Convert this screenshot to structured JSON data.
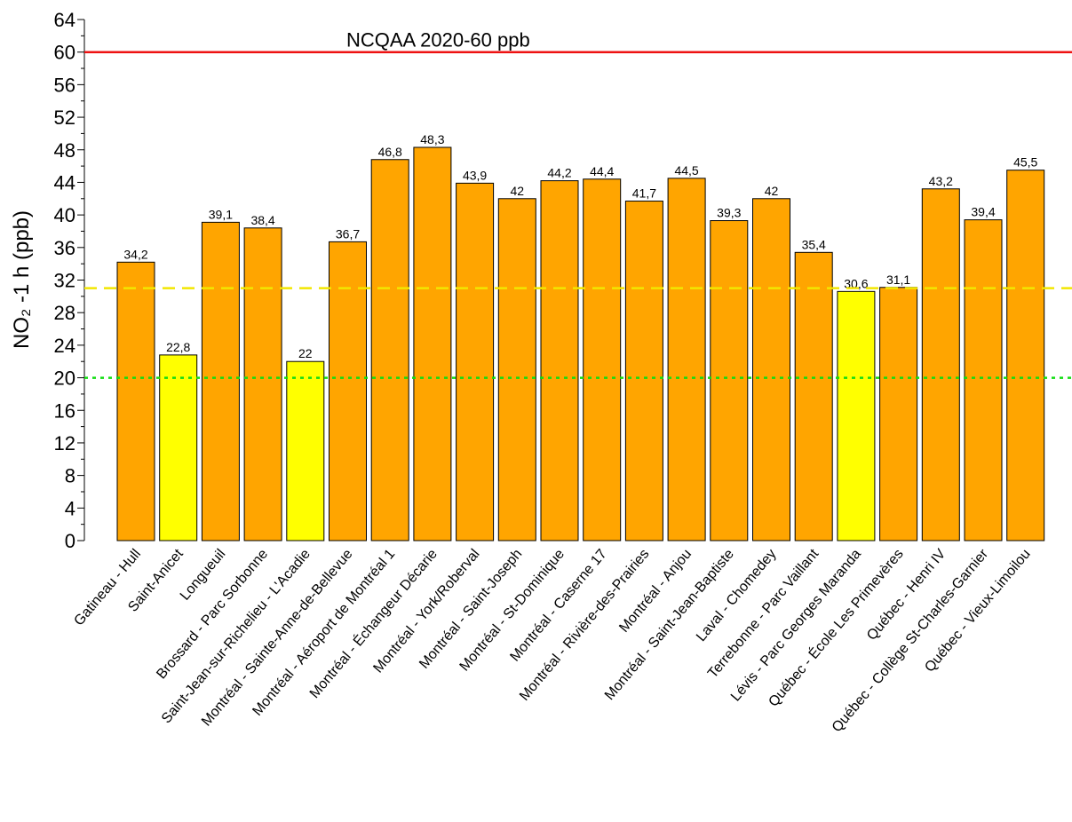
{
  "chart_data": {
    "type": "bar",
    "ylabel": "NO₂ -1 h (ppb)",
    "categories": [
      "Gatineau - Hull",
      "Saint-Anicet",
      "Longueuil",
      "Brossard - Parc Sorbonne",
      "Saint-Jean-sur-Richelieu - L'Acadie",
      "Montréal - Sainte-Anne-de-Bellevue",
      "Montréal - Aéroport de Montréal 1",
      "Montréal - Échangeur Décarie",
      "Montréal - York/Roberval",
      "Montréal - Saint-Joseph",
      "Montréal - St-Dominique",
      "Montréal - Caserne 17",
      "Montréal - Rivière-des-Prairies",
      "Montréal - Anjou",
      "Montréal - Saint-Jean-Baptiste",
      "Laval - Chomedey",
      "Terrebonne - Parc Vaillant",
      "Lévis - Parc Georges Maranda",
      "Québec - École Les Primevères",
      "Québec - Henri IV",
      "Québec - Collège St-Charles-Garnier",
      "Québec - Vieux-Limoilou"
    ],
    "values": [
      34.2,
      22.8,
      39.1,
      38.4,
      22,
      36.7,
      46.8,
      48.3,
      43.9,
      42,
      44.2,
      44.4,
      41.7,
      44.5,
      39.3,
      42,
      35.4,
      30.6,
      31.1,
      43.2,
      39.4,
      45.5
    ],
    "value_labels": [
      "34,2",
      "22,8",
      "39,1",
      "38,4",
      "22",
      "36,7",
      "46,8",
      "48,3",
      "43,9",
      "42",
      "44,2",
      "44,4",
      "41,7",
      "44,5",
      "39,3",
      "42",
      "35,4",
      "30,6",
      "31,1",
      "43,2",
      "39,4",
      "45,5"
    ],
    "colors": [
      "#ffa500",
      "#ffff00",
      "#ffa500",
      "#ffa500",
      "#ffff00",
      "#ffa500",
      "#ffa500",
      "#ffa500",
      "#ffa500",
      "#ffa500",
      "#ffa500",
      "#ffa500",
      "#ffa500",
      "#ffa500",
      "#ffa500",
      "#ffa500",
      "#ffa500",
      "#ffff00",
      "#ffa500",
      "#ffa500",
      "#ffa500",
      "#ffa500"
    ],
    "reference_lines": [
      {
        "value": 60,
        "color": "#ee1111",
        "style": "solid",
        "label": "NCQAA 2020-60 ppb"
      },
      {
        "value": 31,
        "color": "#f2e600",
        "style": "dashed"
      },
      {
        "value": 20,
        "color": "#11dd11",
        "style": "dotted"
      }
    ],
    "ylim": [
      0,
      64
    ],
    "yticks": [
      0,
      4,
      8,
      12,
      16,
      20,
      24,
      28,
      32,
      36,
      40,
      44,
      48,
      52,
      56,
      60,
      64
    ],
    "minor_yticks": [
      2,
      6,
      10,
      14,
      18,
      22,
      26,
      30,
      34,
      38,
      42,
      46,
      50,
      54,
      58,
      62
    ]
  }
}
